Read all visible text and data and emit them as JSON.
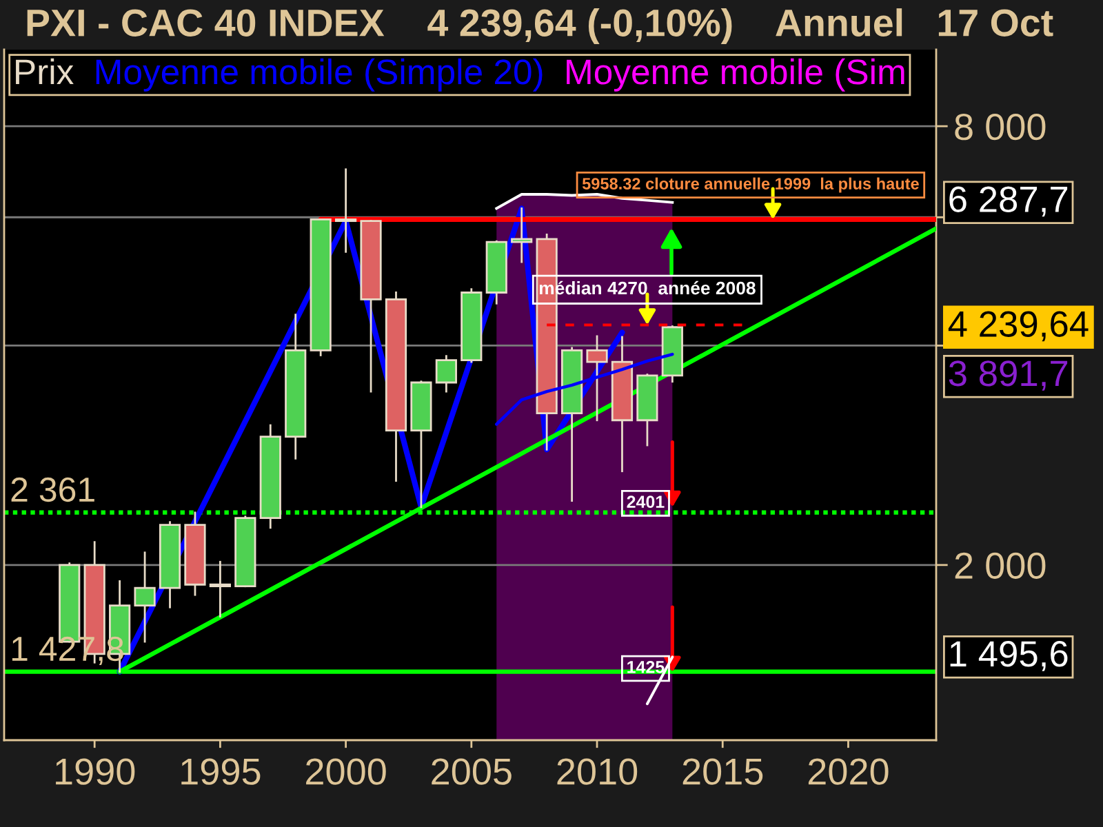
{
  "chart_data": {
    "type": "candlestick",
    "title": "PXI - CAC 40 INDEX    4 239,64 (-0,10%)    Annuel   17 Oct",
    "xlim": [
      1986.4,
      2023.5
    ],
    "xticks": [
      1990,
      1995,
      2000,
      2005,
      2010,
      2015,
      2020
    ],
    "ylim": [
      1150,
      10190
    ],
    "log": true,
    "yticks": [
      {
        "value": 8000,
        "label": "8 000"
      },
      {
        "value": 6000,
        "label": null
      },
      {
        "value": 4000,
        "label": null
      },
      {
        "value": 2000,
        "label": "2 000"
      }
    ],
    "grid": "y",
    "legend": "top left",
    "series": [
      {
        "type": "area",
        "color": "#4f004f",
        "x": [
          2006,
          2007,
          2008,
          2009,
          2010,
          2011,
          2012,
          2013
        ],
        "values": [
          6170,
          6450,
          6450,
          6430,
          6450,
          6370,
          6330,
          6287.7
        ]
      },
      {
        "name": "Prix",
        "color": "#e8dcc8",
        "x": [
          1989,
          1990,
          1991,
          1992,
          1993,
          1994,
          1995,
          1996,
          1997,
          1998,
          1999,
          2000,
          2001,
          2002,
          2003,
          2004,
          2005,
          2006,
          2007,
          2008,
          2009,
          2010,
          2011,
          2012,
          2013
        ],
        "ohlc": [
          [
            1570,
            2010,
            1570,
            2000
          ],
          [
            2000,
            2150,
            1470,
            1510
          ],
          [
            1510,
            1900,
            1427.8,
            1760
          ],
          [
            1760,
            2080,
            1570,
            1860
          ],
          [
            1860,
            2290,
            1750,
            2270
          ],
          [
            2270,
            2360,
            1820,
            1880
          ],
          [
            1880,
            2020,
            1700,
            1870
          ],
          [
            1870,
            2330,
            1870,
            2320
          ],
          [
            2320,
            3110,
            2250,
            3000
          ],
          [
            3000,
            4410,
            2800,
            3940
          ],
          [
            3940,
            5958.32,
            3880,
            5958.32
          ],
          [
            5958.32,
            6980,
            5380,
            5930
          ],
          [
            5930,
            5930,
            3460,
            4630
          ],
          [
            4630,
            4730,
            2610,
            3060
          ],
          [
            3060,
            3570,
            2401,
            3560
          ],
          [
            3560,
            3870,
            3460,
            3820
          ],
          [
            3820,
            4780,
            3800,
            4730
          ],
          [
            4730,
            5560,
            4570,
            5550
          ],
          [
            5550,
            6170,
            5210,
            5600
          ],
          [
            5600,
            5680,
            2880,
            3230
          ],
          [
            3230,
            3970,
            2450,
            3940
          ],
          [
            3940,
            4120,
            3160,
            3800
          ],
          [
            3800,
            4110,
            2690,
            3160
          ],
          [
            3160,
            3650,
            2920,
            3640
          ],
          [
            3640,
            4250,
            3570,
            4239.64
          ]
        ],
        "colors": [
          "#4fd152",
          "#de6262",
          "#4fd152",
          "#4fd152",
          "#4fd152",
          "#de6262",
          "#de6262",
          "#4fd152",
          "#4fd152",
          "#4fd152",
          "#4fd152",
          "#de6262",
          "#de6262",
          "#de6262",
          "#4fd152",
          "#4fd152",
          "#4fd152",
          "#4fd152",
          "#4fd152",
          "#de6262",
          "#4fd152",
          "#de6262",
          "#de6262",
          "#4fd152",
          "#4fd152"
        ]
      },
      {
        "type": "line",
        "name": "Moyenne mobile (Simple 20)",
        "color": "#0000ff",
        "x": [
          2006,
          2007,
          2008,
          2009,
          2010,
          2011,
          2012,
          2013
        ],
        "values": [
          3120,
          3370,
          3460,
          3530,
          3620,
          3710,
          3810,
          3891.7
        ]
      },
      {
        "type": "line",
        "name": "Moyenne mobile (Sim",
        "color": "#ff00ff"
      },
      {
        "type": "line",
        "color": "#ffffff",
        "x": [
          2012,
          2013
        ],
        "values": [
          1290,
          1495.6
        ]
      },
      {
        "type": "line",
        "color": "#0000ff",
        "x": [
          1991,
          2000,
          2003,
          2007,
          2008,
          2011
        ],
        "values": [
          1427.8,
          5930,
          2401,
          6170,
          2880,
          4170
        ]
      },
      {
        "type": "line",
        "color": "#00ff00",
        "x": [
          1991,
          2023.5
        ],
        "values": [
          1427.8,
          5790
        ]
      },
      {
        "type": "line",
        "color": "#ff0000",
        "x": [
          1999,
          2023.5
        ],
        "values": [
          5958.32,
          5958.32
        ]
      },
      {
        "type": "line",
        "color": "#ff0000",
        "line_style": "dashed",
        "x": [
          2008,
          2016
        ],
        "values": [
          4270,
          4270
        ]
      }
    ],
    "ref_lines": [
      {
        "axis": "y",
        "value": 2361,
        "label": "2 361",
        "color": "#00ff00",
        "line_style": "dotted"
      },
      {
        "axis": "y",
        "value": 1427.8,
        "label": "1 427,8",
        "color": "#00ff00",
        "line_style": "solid"
      }
    ],
    "annotations": [
      {
        "text": "5958.32 cloture annuelle 1999  la plus haute",
        "x": 2017,
        "y": 5958.32
      },
      {
        "text": "médian 4270  année 2008",
        "x": 2012,
        "y": 4270
      },
      {
        "text": "2401",
        "x": 2013,
        "y": 2401
      },
      {
        "text": "1425",
        "x": 2013,
        "y": 1425
      },
      "6 287,7",
      "4 239,64",
      "3 891,7",
      "1 495,6"
    ]
  }
}
